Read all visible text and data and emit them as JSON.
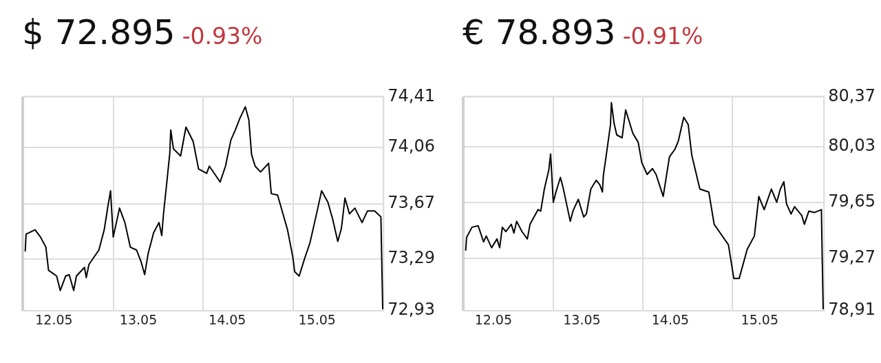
{
  "chart_data": [
    {
      "type": "line",
      "title": "$ 72.895",
      "subtitle": "-0.93%",
      "color": "#000000",
      "marker": "none",
      "grid": true,
      "x": [
        "--05-12T00:29",
        "--05-12T00:43",
        "--05-12T03:07",
        "--05-12T04:34",
        "--05-12T06:00",
        "--05-12T06:43",
        "--05-12T08:53",
        "--05-12T09:50",
        "--05-12T11:17",
        "--05-12T12:14",
        "--05-12T13:26",
        "--05-12T14:10",
        "--05-12T16:19",
        "--05-12T16:48",
        "--05-12T17:31",
        "--05-12T20:10",
        "--05-12T21:36",
        "--05-12T22:34",
        "--05-12T23:17",
        "--05-13T00:00",
        "--05-13T01:41",
        "--05-13T03:07",
        "--05-13T04:34",
        "--05-13T06:14",
        "--05-13T07:26",
        "--05-13T08:24",
        "--05-13T09:22",
        "--05-13T10:48",
        "--05-13T12:14",
        "--05-13T12:58",
        "--05-13T13:26",
        "--05-13T14:10",
        "--05-13T15:07",
        "--05-13T15:22",
        "--05-13T16:05",
        "--05-13T18:00",
        "--05-13T19:26",
        "--05-13T21:22",
        "--05-13T22:48",
        "--05-14T00:58",
        "--05-14T01:41",
        "--05-14T04:34",
        "--05-14T06:00",
        "--05-14T07:26",
        "--05-14T08:38",
        "--05-14T09:50",
        "--05-14T11:17",
        "--05-14T12:14",
        "--05-14T12:58",
        "--05-14T13:55",
        "--05-14T15:22",
        "--05-14T17:31",
        "--05-14T18:14",
        "--05-14T19:55",
        "--05-14T22:34",
        "--05-15T00:00",
        "--05-15T00:29",
        "--05-15T01:41",
        "--05-15T03:07",
        "--05-15T04:34",
        "--05-15T06:14",
        "--05-15T07:41",
        "--05-15T09:22",
        "--05-15T10:34",
        "--05-15T12:00",
        "--05-15T12:58",
        "--05-15T13:55",
        "--05-15T15:07",
        "--05-15T16:34",
        "--05-15T18:29",
        "--05-15T19:55",
        "--05-15T21:50",
        "--05-15T23:31",
        "--05-15T23:46",
        "--05-16T00:00"
      ],
      "values": [
        73.34,
        73.46,
        73.49,
        73.44,
        73.37,
        73.21,
        73.17,
        73.07,
        73.17,
        73.18,
        73.07,
        73.17,
        73.23,
        73.16,
        73.25,
        73.35,
        73.49,
        73.65,
        73.76,
        73.44,
        73.64,
        73.54,
        73.37,
        73.35,
        73.27,
        73.18,
        73.33,
        73.47,
        73.54,
        73.45,
        73.6,
        73.78,
        74.02,
        74.18,
        74.05,
        74.0,
        74.2,
        74.1,
        73.91,
        73.88,
        73.93,
        73.82,
        73.93,
        74.11,
        74.18,
        74.26,
        74.34,
        74.25,
        74.01,
        73.93,
        73.89,
        73.95,
        73.74,
        73.73,
        73.49,
        73.3,
        73.2,
        73.17,
        73.29,
        73.4,
        73.59,
        73.76,
        73.68,
        73.57,
        73.41,
        73.5,
        73.71,
        73.6,
        73.64,
        73.54,
        73.62,
        73.62,
        73.58,
        73.25,
        72.94
      ],
      "xlim": [
        "--05-12",
        "--05-16T00:14"
      ],
      "ylim": [
        72.93,
        74.41
      ],
      "xticks": [
        {
          "value": "--05-12T08:10",
          "label": "12.05"
        },
        {
          "value": "--05-13",
          "label": null
        },
        {
          "value": "--05-13T06:43",
          "label": "13.05"
        },
        {
          "value": "--05-14",
          "label": null
        },
        {
          "value": "--05-14T06:29",
          "label": "14.05"
        },
        {
          "value": "--05-15",
          "label": null
        },
        {
          "value": "--05-15T06:29",
          "label": "15.05"
        }
      ],
      "yticks": [
        {
          "value": 72.93,
          "label": "72,93"
        },
        {
          "value": 73.29,
          "label": "73,29"
        },
        {
          "value": 73.67,
          "label": "73,67"
        },
        {
          "value": 74.06,
          "label": "74,06"
        },
        {
          "value": 74.41,
          "label": "74,41"
        }
      ]
    },
    {
      "type": "line",
      "title": "€ 78.893",
      "subtitle": "-0.91%",
      "color": "#000000",
      "marker": "none",
      "grid": true,
      "x": [
        "--05-12T00:29",
        "--05-12T00:43",
        "--05-12T02:10",
        "--05-12T03:50",
        "--05-12T05:17",
        "--05-12T06:00",
        "--05-12T07:26",
        "--05-12T08:53",
        "--05-12T09:36",
        "--05-12T10:19",
        "--05-12T11:17",
        "--05-12T12:43",
        "--05-12T13:26",
        "--05-12T14:10",
        "--05-12T15:36",
        "--05-12T17:02",
        "--05-12T17:46",
        "--05-12T19:55",
        "--05-12T20:38",
        "--05-12T21:36",
        "--05-12T22:48",
        "--05-12T23:17",
        "--05-13T00:00",
        "--05-13T00:43",
        "--05-13T01:55",
        "--05-13T02:38",
        "--05-13T04:34",
        "--05-13T05:17",
        "--05-13T06:43",
        "--05-13T08:10",
        "--05-13T08:53",
        "--05-13T10:05",
        "--05-13T11:31",
        "--05-13T12:29",
        "--05-13T13:12",
        "--05-13T13:26",
        "--05-13T14:10",
        "--05-13T15:22",
        "--05-13T15:36",
        "--05-13T16:19",
        "--05-13T17:02",
        "--05-13T18:29",
        "--05-13T19:26",
        "--05-13T21:22",
        "--05-13T22:48",
        "--05-13T23:46",
        "--05-14T01:12",
        "--05-14T02:38",
        "--05-14T03:36",
        "--05-14T05:31",
        "--05-14T07:12",
        "--05-14T08:38",
        "--05-14T09:36",
        "--05-14T11:02",
        "--05-14T12:14",
        "--05-14T13:12",
        "--05-14T15:22",
        "--05-14T17:46",
        "--05-14T19:12",
        "--05-14T21:07",
        "--05-14T23:02",
        "--05-15T00:29",
        "--05-15T01:55",
        "--05-15T04:05",
        "--05-15T06:00",
        "--05-15T07:12",
        "--05-15T08:38",
        "--05-15T10:34",
        "--05-15T12:00",
        "--05-15T12:58",
        "--05-15T13:55",
        "--05-15T14:38",
        "--05-15T15:50",
        "--05-15T16:48",
        "--05-15T18:43",
        "--05-15T19:26",
        "--05-15T20:38",
        "--05-15T22:05",
        "--05-16T00:00",
        "--05-16T00:14",
        "--05-16T00:29"
      ],
      "values": [
        79.32,
        79.41,
        79.48,
        79.49,
        79.38,
        79.42,
        79.34,
        79.4,
        79.34,
        79.48,
        79.45,
        79.5,
        79.44,
        79.52,
        79.45,
        79.4,
        79.5,
        79.6,
        79.59,
        79.74,
        79.87,
        79.98,
        79.65,
        79.72,
        79.82,
        79.75,
        79.52,
        79.59,
        79.67,
        79.55,
        79.57,
        79.74,
        79.8,
        79.77,
        79.72,
        79.83,
        79.96,
        80.18,
        80.33,
        80.19,
        80.11,
        80.09,
        80.28,
        80.12,
        80.06,
        79.92,
        79.84,
        79.88,
        79.84,
        79.69,
        79.96,
        80.01,
        80.07,
        80.23,
        80.18,
        79.97,
        79.74,
        79.72,
        79.5,
        79.43,
        79.36,
        79.13,
        79.13,
        79.33,
        79.42,
        79.69,
        79.6,
        79.74,
        79.65,
        79.74,
        79.79,
        79.64,
        79.57,
        79.62,
        79.56,
        79.5,
        79.59,
        79.58,
        79.6,
        79.25,
        78.92
      ],
      "xlim": [
        "--05-12",
        "--05-16T00:43"
      ],
      "ylim": [
        78.91,
        80.37
      ],
      "xticks": [
        {
          "value": "--05-12T07:55",
          "label": "12.05"
        },
        {
          "value": "--05-13",
          "label": null
        },
        {
          "value": "--05-13T07:41",
          "label": "13.05"
        },
        {
          "value": "--05-14",
          "label": null
        },
        {
          "value": "--05-14T07:26",
          "label": "14.05"
        },
        {
          "value": "--05-15",
          "label": null
        },
        {
          "value": "--05-15T07:26",
          "label": "15.05"
        }
      ],
      "yticks": [
        {
          "value": 78.91,
          "label": "78,91"
        },
        {
          "value": 79.27,
          "label": "79,27"
        },
        {
          "value": 79.65,
          "label": "79,65"
        },
        {
          "value": 80.03,
          "label": "80,03"
        },
        {
          "value": 80.37,
          "label": "80,37"
        }
      ]
    }
  ]
}
